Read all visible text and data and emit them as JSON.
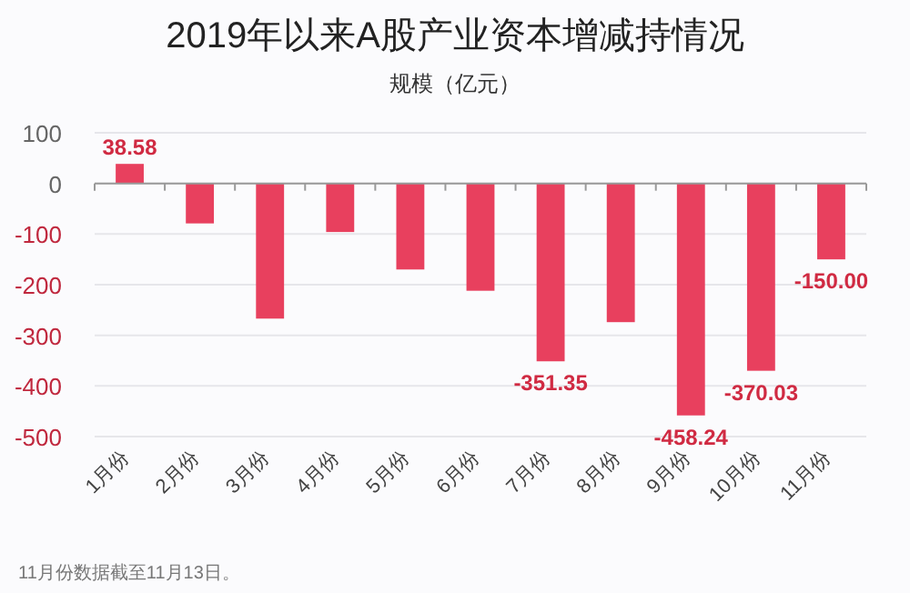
{
  "chart_data": {
    "type": "bar",
    "title": "2019年以来A股产业资本增减持情况",
    "subtitle": "规模（亿元）",
    "categories": [
      "1月份",
      "2月份",
      "3月份",
      "4月份",
      "5月份",
      "6月份",
      "7月份",
      "8月份",
      "9月份",
      "10月份",
      "11月份"
    ],
    "values": [
      38.58,
      -79,
      -267,
      -96,
      -170,
      -212,
      -351.35,
      -274,
      -458.24,
      -370.03,
      -150.0
    ],
    "value_labels": [
      "38.58",
      null,
      null,
      null,
      null,
      null,
      "-351.35",
      null,
      "-458.24",
      "-370.03",
      "-150.00"
    ],
    "color": "#e8405e",
    "ylim": [
      -500,
      100
    ],
    "yticks": [
      -500,
      -400,
      -300,
      -200,
      -100,
      0,
      100
    ],
    "grid": "y",
    "annotations": [
      "11月份数据截至11月13日。"
    ]
  }
}
